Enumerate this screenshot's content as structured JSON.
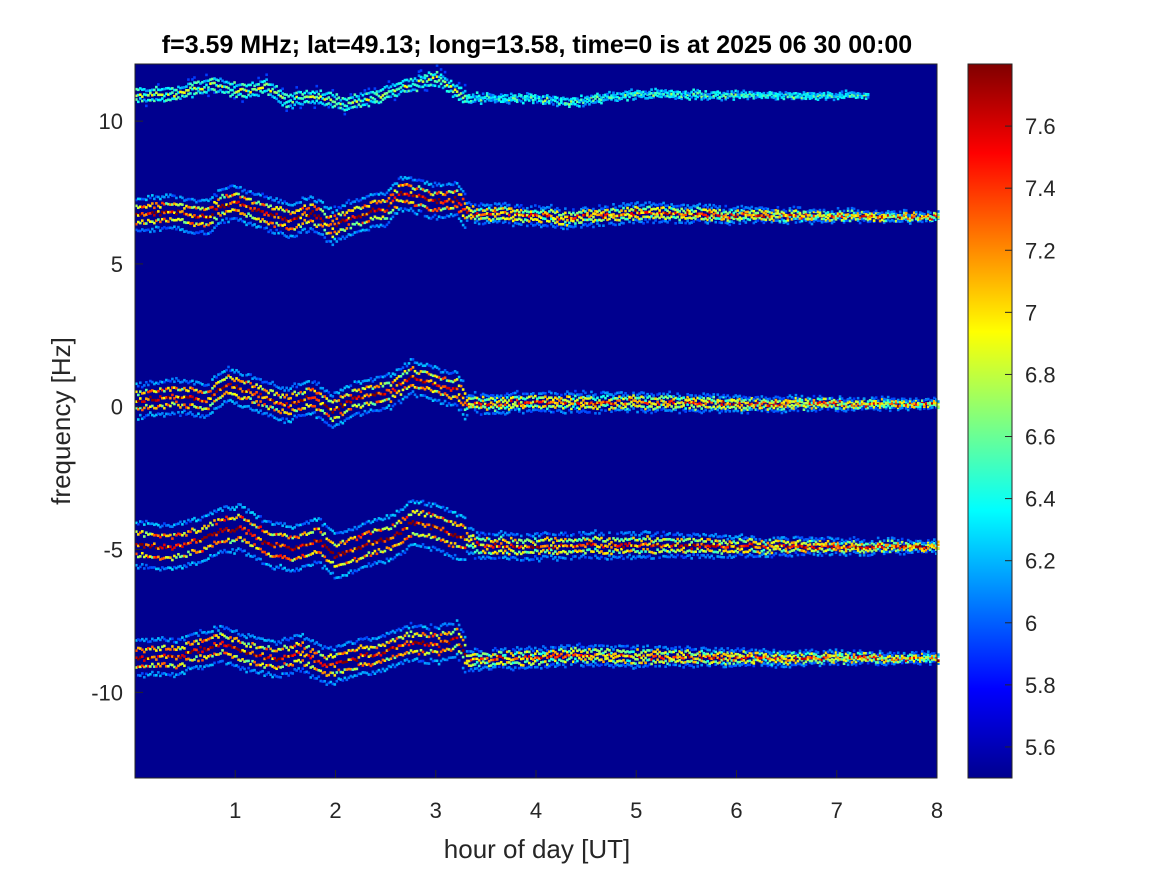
{
  "chart_data": {
    "type": "heatmap",
    "title": "f=3.59 MHz;  lat=49.13; long=13.58, time=0 is at 2025 06 30 00:00",
    "xlabel": "hour of day [UT]",
    "ylabel": "frequency [Hz]",
    "xlim": [
      0,
      8
    ],
    "ylim": [
      -13,
      12
    ],
    "xticks": [
      {
        "value": 1,
        "label": "1"
      },
      {
        "value": 2,
        "label": "2"
      },
      {
        "value": 3,
        "label": "3"
      },
      {
        "value": 4,
        "label": "4"
      },
      {
        "value": 5,
        "label": "5"
      },
      {
        "value": 6,
        "label": "6"
      },
      {
        "value": 7,
        "label": "7"
      },
      {
        "value": 8,
        "label": "8"
      }
    ],
    "yticks": [
      {
        "value": 10,
        "label": "10"
      },
      {
        "value": 5,
        "label": "5"
      },
      {
        "value": 0,
        "label": "0"
      },
      {
        "value": -5,
        "label": "-5"
      },
      {
        "value": -10,
        "label": "-10"
      }
    ],
    "colorbar": {
      "range": [
        5.5,
        7.8
      ],
      "ticks": [
        {
          "value": 7.6,
          "label": "7.6"
        },
        {
          "value": 7.4,
          "label": "7.4"
        },
        {
          "value": 7.2,
          "label": "7.2"
        },
        {
          "value": 7.0,
          "label": "7"
        },
        {
          "value": 6.8,
          "label": "6.8"
        },
        {
          "value": 6.6,
          "label": "6.6"
        },
        {
          "value": 6.4,
          "label": "6.4"
        },
        {
          "value": 6.2,
          "label": "6.2"
        },
        {
          "value": 6.0,
          "label": "6"
        },
        {
          "value": 5.8,
          "label": "5.8"
        },
        {
          "value": 5.6,
          "label": "5.6"
        }
      ],
      "colormap": "jet",
      "position": "right"
    },
    "background_color": "#00008f",
    "grid": false,
    "traces": [
      {
        "center_freq": 10.9,
        "strength": 0.55,
        "width": 0.18,
        "active_until": 7.3,
        "points": [
          [
            0,
            10.9
          ],
          [
            0.4,
            10.95
          ],
          [
            0.75,
            11.3
          ],
          [
            1.1,
            11.0
          ],
          [
            1.3,
            11.25
          ],
          [
            1.5,
            10.7
          ],
          [
            1.8,
            10.85
          ],
          [
            2.1,
            10.6
          ],
          [
            2.45,
            10.9
          ],
          [
            2.75,
            11.3
          ],
          [
            3.0,
            11.5
          ],
          [
            3.3,
            10.8
          ],
          [
            4.0,
            10.8
          ],
          [
            4.3,
            10.65
          ],
          [
            5.0,
            10.95
          ],
          [
            6.0,
            10.9
          ],
          [
            7.3,
            10.9
          ]
        ]
      },
      {
        "center_freq": 6.7,
        "strength": 0.95,
        "width": 0.28,
        "active_until": 8,
        "points": [
          [
            0,
            6.7
          ],
          [
            0.35,
            6.85
          ],
          [
            0.7,
            6.6
          ],
          [
            0.85,
            7.05
          ],
          [
            1.0,
            7.15
          ],
          [
            1.3,
            6.75
          ],
          [
            1.55,
            6.55
          ],
          [
            1.75,
            6.8
          ],
          [
            1.95,
            6.3
          ],
          [
            2.2,
            6.7
          ],
          [
            2.5,
            6.95
          ],
          [
            2.65,
            7.5
          ],
          [
            3.0,
            7.2
          ],
          [
            3.2,
            7.25
          ],
          [
            3.3,
            6.8
          ],
          [
            4.0,
            6.7
          ],
          [
            4.3,
            6.6
          ],
          [
            5.0,
            6.8
          ],
          [
            6.0,
            6.7
          ],
          [
            8.0,
            6.65
          ]
        ]
      },
      {
        "center_freq": 0.2,
        "strength": 0.95,
        "width": 0.28,
        "active_until": 8,
        "points": [
          [
            0,
            0.2
          ],
          [
            0.4,
            0.35
          ],
          [
            0.7,
            0.25
          ],
          [
            0.9,
            0.75
          ],
          [
            1.2,
            0.45
          ],
          [
            1.5,
            0.05
          ],
          [
            1.75,
            0.35
          ],
          [
            1.95,
            -0.15
          ],
          [
            2.2,
            0.3
          ],
          [
            2.55,
            0.55
          ],
          [
            2.75,
            1.05
          ],
          [
            3.0,
            0.75
          ],
          [
            3.2,
            0.6
          ],
          [
            3.3,
            0.1
          ],
          [
            4.0,
            0.15
          ],
          [
            5.0,
            0.15
          ],
          [
            6.0,
            0.1
          ],
          [
            8.0,
            0.1
          ]
        ]
      },
      {
        "center_freq": -4.9,
        "strength": 1.0,
        "width": 0.38,
        "active_until": 8,
        "points": [
          [
            0,
            -4.8
          ],
          [
            0.35,
            -4.95
          ],
          [
            0.6,
            -4.7
          ],
          [
            0.85,
            -4.35
          ],
          [
            1.05,
            -4.25
          ],
          [
            1.3,
            -4.8
          ],
          [
            1.6,
            -4.95
          ],
          [
            1.8,
            -4.65
          ],
          [
            2.0,
            -5.25
          ],
          [
            2.3,
            -4.8
          ],
          [
            2.6,
            -4.5
          ],
          [
            2.75,
            -4.05
          ],
          [
            3.0,
            -4.25
          ],
          [
            3.2,
            -4.5
          ],
          [
            3.4,
            -4.85
          ],
          [
            4.0,
            -4.9
          ],
          [
            4.3,
            -4.85
          ],
          [
            5.0,
            -4.85
          ],
          [
            6.0,
            -4.9
          ],
          [
            8.0,
            -4.9
          ]
        ]
      },
      {
        "center_freq": -8.8,
        "strength": 0.95,
        "width": 0.3,
        "active_until": 8,
        "points": [
          [
            0,
            -8.8
          ],
          [
            0.4,
            -8.75
          ],
          [
            0.6,
            -8.55
          ],
          [
            0.85,
            -8.3
          ],
          [
            1.1,
            -8.6
          ],
          [
            1.4,
            -8.85
          ],
          [
            1.65,
            -8.6
          ],
          [
            1.9,
            -9.1
          ],
          [
            2.2,
            -8.8
          ],
          [
            2.5,
            -8.6
          ],
          [
            2.7,
            -8.25
          ],
          [
            3.0,
            -8.35
          ],
          [
            3.2,
            -8.1
          ],
          [
            3.3,
            -8.85
          ],
          [
            4.0,
            -8.8
          ],
          [
            4.3,
            -8.7
          ],
          [
            5.0,
            -8.75
          ],
          [
            6.0,
            -8.8
          ],
          [
            8.0,
            -8.8
          ]
        ]
      }
    ]
  }
}
